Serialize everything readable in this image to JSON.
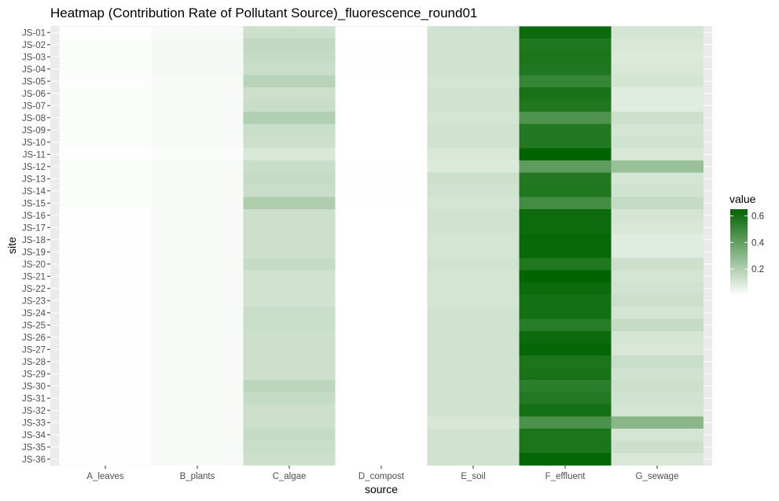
{
  "chart_data": {
    "type": "heatmap",
    "title": "Heatmap (Contribution Rate of Pollutant Source)_fluorescence_round01",
    "xlabel": "source",
    "ylabel": "site",
    "x": [
      "A_leaves",
      "B_plants",
      "C_algae",
      "D_compost",
      "E_soil",
      "F_effluent",
      "G_sewage"
    ],
    "y": [
      "JS-01",
      "JS-02",
      "JS-03",
      "JS-04",
      "JS-05",
      "JS-06",
      "JS-07",
      "JS-08",
      "JS-09",
      "JS-10",
      "JS-11",
      "JS-12",
      "JS-13",
      "JS-14",
      "JS-15",
      "JS-16",
      "JS-17",
      "JS-18",
      "JS-19",
      "JS-20",
      "JS-21",
      "JS-22",
      "JS-23",
      "JS-24",
      "JS-25",
      "JS-26",
      "JS-27",
      "JS-28",
      "JS-29",
      "JS-30",
      "JS-31",
      "JS-32",
      "JS-33",
      "JS-34",
      "JS-35",
      "JS-36"
    ],
    "values": [
      [
        0.005,
        0.02,
        0.13,
        0.002,
        0.12,
        0.62,
        0.11
      ],
      [
        0.01,
        0.025,
        0.16,
        0.005,
        0.12,
        0.57,
        0.1
      ],
      [
        0.01,
        0.025,
        0.15,
        0.005,
        0.12,
        0.58,
        0.09
      ],
      [
        0.01,
        0.025,
        0.14,
        0.005,
        0.12,
        0.57,
        0.1
      ],
      [
        0.008,
        0.02,
        0.18,
        0.002,
        0.11,
        0.51,
        0.11
      ],
      [
        0.01,
        0.02,
        0.13,
        0.002,
        0.12,
        0.59,
        0.08
      ],
      [
        0.01,
        0.02,
        0.14,
        0.002,
        0.12,
        0.57,
        0.08
      ],
      [
        0.01,
        0.02,
        0.2,
        0.002,
        0.11,
        0.45,
        0.13
      ],
      [
        0.01,
        0.02,
        0.14,
        0.002,
        0.12,
        0.56,
        0.11
      ],
      [
        0.01,
        0.02,
        0.13,
        0.002,
        0.12,
        0.56,
        0.12
      ],
      [
        0.005,
        0.01,
        0.1,
        0.002,
        0.1,
        0.65,
        0.1
      ],
      [
        0.01,
        0.02,
        0.14,
        0.005,
        0.09,
        0.41,
        0.26
      ],
      [
        0.01,
        0.02,
        0.15,
        0.005,
        0.13,
        0.56,
        0.11
      ],
      [
        0.01,
        0.02,
        0.14,
        0.005,
        0.12,
        0.57,
        0.12
      ],
      [
        0.01,
        0.02,
        0.21,
        0.005,
        0.11,
        0.48,
        0.15
      ],
      [
        0.005,
        0.02,
        0.13,
        0.002,
        0.12,
        0.62,
        0.11
      ],
      [
        0.005,
        0.02,
        0.13,
        0.002,
        0.12,
        0.62,
        0.1
      ],
      [
        0.005,
        0.02,
        0.13,
        0.002,
        0.11,
        0.63,
        0.08
      ],
      [
        0.005,
        0.02,
        0.13,
        0.002,
        0.11,
        0.63,
        0.08
      ],
      [
        0.005,
        0.02,
        0.15,
        0.002,
        0.12,
        0.57,
        0.13
      ],
      [
        0.005,
        0.02,
        0.12,
        0.002,
        0.11,
        0.65,
        0.11
      ],
      [
        0.005,
        0.02,
        0.12,
        0.002,
        0.11,
        0.62,
        0.12
      ],
      [
        0.005,
        0.02,
        0.12,
        0.002,
        0.11,
        0.6,
        0.13
      ],
      [
        0.005,
        0.02,
        0.14,
        0.002,
        0.12,
        0.6,
        0.11
      ],
      [
        0.005,
        0.02,
        0.14,
        0.002,
        0.12,
        0.55,
        0.15
      ],
      [
        0.005,
        0.02,
        0.13,
        0.002,
        0.12,
        0.62,
        0.11
      ],
      [
        0.005,
        0.02,
        0.13,
        0.002,
        0.12,
        0.64,
        0.1
      ],
      [
        0.005,
        0.02,
        0.13,
        0.002,
        0.12,
        0.58,
        0.14
      ],
      [
        0.005,
        0.02,
        0.13,
        0.002,
        0.12,
        0.59,
        0.12
      ],
      [
        0.005,
        0.02,
        0.17,
        0.002,
        0.12,
        0.54,
        0.13
      ],
      [
        0.005,
        0.02,
        0.15,
        0.002,
        0.12,
        0.56,
        0.12
      ],
      [
        0.005,
        0.02,
        0.13,
        0.002,
        0.12,
        0.6,
        0.11
      ],
      [
        0.005,
        0.02,
        0.13,
        0.002,
        0.1,
        0.46,
        0.3
      ],
      [
        0.005,
        0.02,
        0.15,
        0.002,
        0.12,
        0.58,
        0.11
      ],
      [
        0.005,
        0.02,
        0.14,
        0.002,
        0.12,
        0.58,
        0.13
      ],
      [
        0.005,
        0.02,
        0.13,
        0.002,
        0.12,
        0.64,
        0.1
      ]
    ],
    "color_scale": {
      "low": "#ffffff",
      "high": "#006400",
      "domain": [
        0,
        0.65
      ]
    },
    "legend": {
      "title": "value",
      "ticks": [
        0.2,
        0.4,
        0.6
      ],
      "tick_labels": [
        "0.2",
        "0.4",
        "0.6"
      ],
      "placement": "right"
    },
    "colors": {
      "panel_background": "#ebebeb",
      "grid": "#ffffff"
    },
    "grid": true
  }
}
